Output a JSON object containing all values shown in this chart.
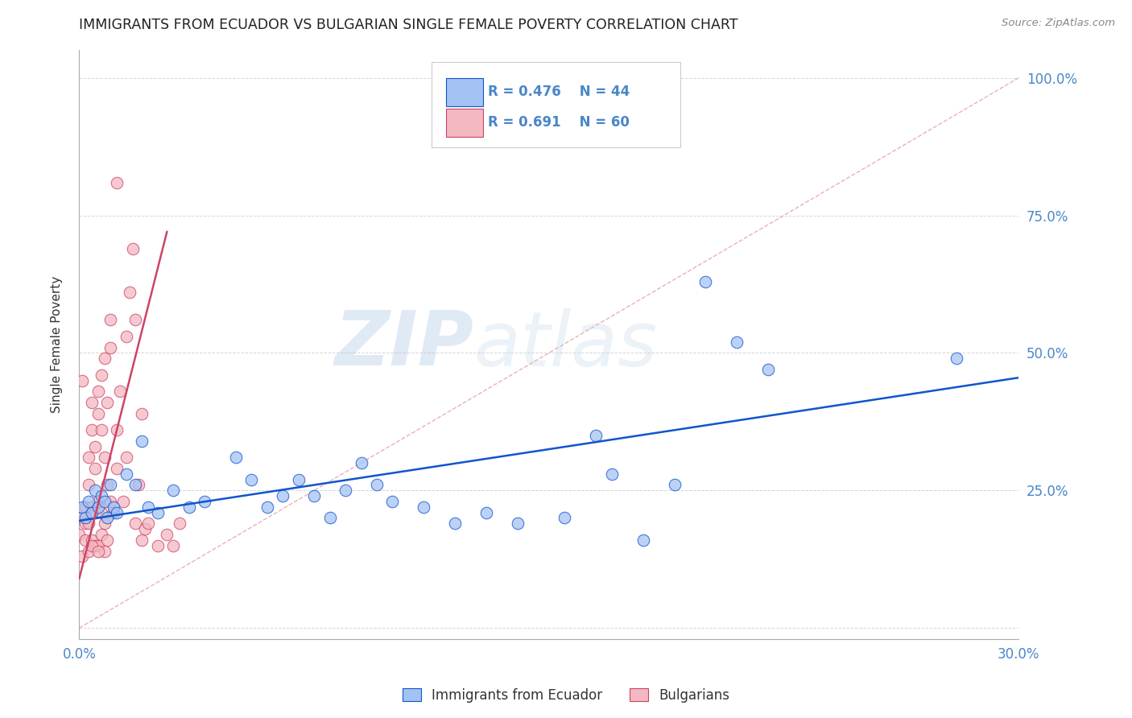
{
  "title": "IMMIGRANTS FROM ECUADOR VS BULGARIAN SINGLE FEMALE POVERTY CORRELATION CHART",
  "source": "Source: ZipAtlas.com",
  "ylabel": "Single Female Poverty",
  "yticks": [
    0.0,
    0.25,
    0.5,
    0.75,
    1.0
  ],
  "ytick_labels": [
    "",
    "25.0%",
    "50.0%",
    "75.0%",
    "100.0%"
  ],
  "xlim": [
    0.0,
    0.3
  ],
  "ylim": [
    -0.02,
    1.05
  ],
  "color_ecuador": "#a4c2f4",
  "color_bulgarian": "#f4b8c1",
  "color_ecuador_line": "#1155cc",
  "color_bulgarian_line": "#cc4466",
  "color_diagonal": "#e8a8b0",
  "watermark_zip": "ZIP",
  "watermark_atlas": "atlas",
  "ecuador_points": [
    [
      0.001,
      0.22
    ],
    [
      0.002,
      0.2
    ],
    [
      0.003,
      0.23
    ],
    [
      0.004,
      0.21
    ],
    [
      0.005,
      0.25
    ],
    [
      0.006,
      0.22
    ],
    [
      0.007,
      0.24
    ],
    [
      0.008,
      0.23
    ],
    [
      0.009,
      0.2
    ],
    [
      0.01,
      0.26
    ],
    [
      0.011,
      0.22
    ],
    [
      0.012,
      0.21
    ],
    [
      0.015,
      0.28
    ],
    [
      0.018,
      0.26
    ],
    [
      0.02,
      0.34
    ],
    [
      0.022,
      0.22
    ],
    [
      0.025,
      0.21
    ],
    [
      0.03,
      0.25
    ],
    [
      0.035,
      0.22
    ],
    [
      0.04,
      0.23
    ],
    [
      0.05,
      0.31
    ],
    [
      0.055,
      0.27
    ],
    [
      0.06,
      0.22
    ],
    [
      0.065,
      0.24
    ],
    [
      0.07,
      0.27
    ],
    [
      0.075,
      0.24
    ],
    [
      0.08,
      0.2
    ],
    [
      0.085,
      0.25
    ],
    [
      0.09,
      0.3
    ],
    [
      0.095,
      0.26
    ],
    [
      0.1,
      0.23
    ],
    [
      0.11,
      0.22
    ],
    [
      0.12,
      0.19
    ],
    [
      0.13,
      0.21
    ],
    [
      0.14,
      0.19
    ],
    [
      0.155,
      0.2
    ],
    [
      0.165,
      0.35
    ],
    [
      0.17,
      0.28
    ],
    [
      0.18,
      0.16
    ],
    [
      0.19,
      0.26
    ],
    [
      0.2,
      0.63
    ],
    [
      0.21,
      0.52
    ],
    [
      0.22,
      0.47
    ],
    [
      0.28,
      0.49
    ]
  ],
  "bulgarian_points": [
    [
      0.0,
      0.17
    ],
    [
      0.001,
      0.13
    ],
    [
      0.001,
      0.2
    ],
    [
      0.001,
      0.45
    ],
    [
      0.002,
      0.19
    ],
    [
      0.002,
      0.22
    ],
    [
      0.002,
      0.16
    ],
    [
      0.003,
      0.19
    ],
    [
      0.003,
      0.26
    ],
    [
      0.003,
      0.31
    ],
    [
      0.003,
      0.14
    ],
    [
      0.004,
      0.22
    ],
    [
      0.004,
      0.36
    ],
    [
      0.004,
      0.41
    ],
    [
      0.004,
      0.16
    ],
    [
      0.005,
      0.21
    ],
    [
      0.005,
      0.29
    ],
    [
      0.005,
      0.33
    ],
    [
      0.005,
      0.15
    ],
    [
      0.006,
      0.23
    ],
    [
      0.006,
      0.39
    ],
    [
      0.006,
      0.43
    ],
    [
      0.006,
      0.15
    ],
    [
      0.007,
      0.21
    ],
    [
      0.007,
      0.36
    ],
    [
      0.007,
      0.46
    ],
    [
      0.007,
      0.17
    ],
    [
      0.008,
      0.19
    ],
    [
      0.008,
      0.31
    ],
    [
      0.008,
      0.49
    ],
    [
      0.008,
      0.14
    ],
    [
      0.009,
      0.26
    ],
    [
      0.009,
      0.41
    ],
    [
      0.01,
      0.23
    ],
    [
      0.01,
      0.51
    ],
    [
      0.01,
      0.56
    ],
    [
      0.011,
      0.21
    ],
    [
      0.012,
      0.29
    ],
    [
      0.012,
      0.36
    ],
    [
      0.012,
      0.81
    ],
    [
      0.013,
      0.43
    ],
    [
      0.014,
      0.23
    ],
    [
      0.015,
      0.31
    ],
    [
      0.015,
      0.53
    ],
    [
      0.016,
      0.61
    ],
    [
      0.017,
      0.69
    ],
    [
      0.018,
      0.19
    ],
    [
      0.018,
      0.56
    ],
    [
      0.019,
      0.26
    ],
    [
      0.02,
      0.16
    ],
    [
      0.02,
      0.39
    ],
    [
      0.021,
      0.18
    ],
    [
      0.022,
      0.19
    ],
    [
      0.025,
      0.15
    ],
    [
      0.028,
      0.17
    ],
    [
      0.03,
      0.15
    ],
    [
      0.032,
      0.19
    ],
    [
      0.004,
      0.15
    ],
    [
      0.006,
      0.14
    ],
    [
      0.009,
      0.16
    ]
  ],
  "ecu_line_x": [
    0.0,
    0.3
  ],
  "ecu_line_y": [
    0.195,
    0.455
  ],
  "bul_line_x": [
    0.0,
    0.028
  ],
  "bul_line_y": [
    0.09,
    0.72
  ]
}
